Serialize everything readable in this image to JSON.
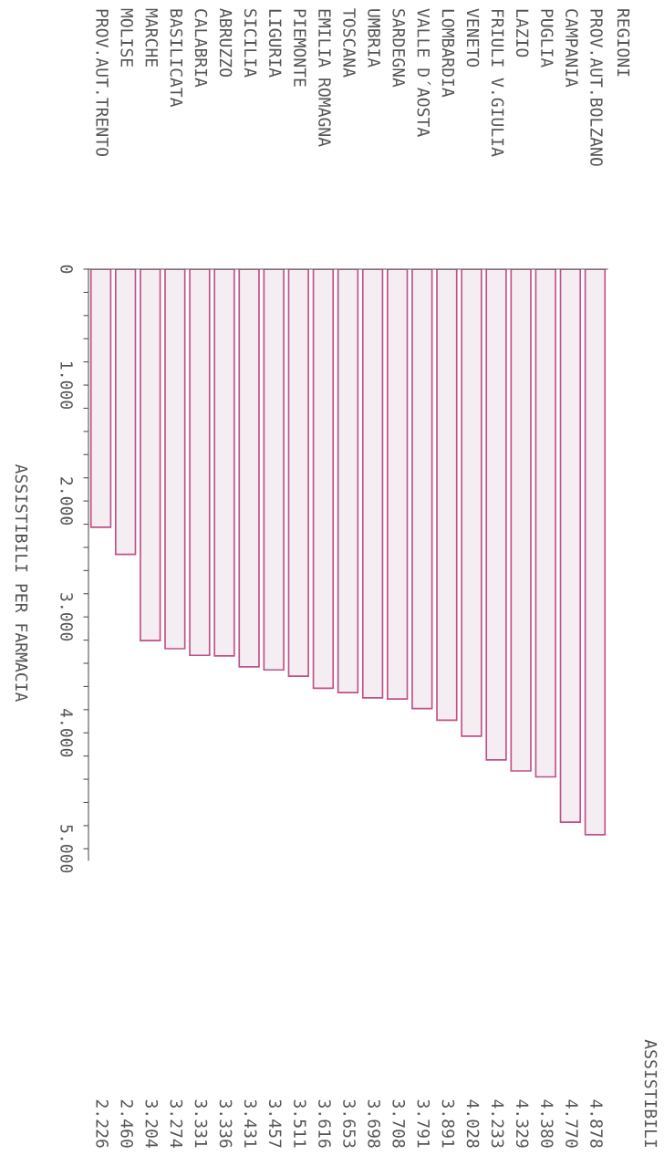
{
  "chart_data": {
    "type": "bar",
    "ylabel": "ASSISTIBILI PER FARMACIA",
    "annotations": [
      "REGIONI",
      "ASSISTIBILI"
    ],
    "categories": [
      "PROV.AUT.TRENTO",
      "MOLISE",
      "MARCHE",
      "BASILICATA",
      "CALABRIA",
      "ABRUZZO",
      "SICILIA",
      "LIGURIA",
      "PIEMONTE",
      "EMILIA ROMAGNA",
      "TOSCANA",
      "UMBRIA",
      "SARDEGNA",
      "VALLE D´AOSTA",
      "LOMBARDIA",
      "VENETO",
      "FRIULI V.GIULIA",
      "LAZIO",
      "PUGLIA",
      "CAMPANIA",
      "PROV.AUT.BOLZANO"
    ],
    "values": [
      2226,
      2460,
      3204,
      3274,
      3331,
      3336,
      3431,
      3457,
      3511,
      3616,
      3653,
      3698,
      3708,
      3791,
      3891,
      4028,
      4233,
      4329,
      4380,
      4770,
      4878
    ],
    "value_labels": [
      "2.226",
      "2.460",
      "3.204",
      "3.274",
      "3.331",
      "3.336",
      "3.431",
      "3.457",
      "3.511",
      "3.616",
      "3.653",
      "3.698",
      "3.708",
      "3.791",
      "3.891",
      "4.028",
      "4.233",
      "4.329",
      "4.380",
      "4.770",
      "4.878"
    ],
    "color": "#f4eef2",
    "ylim": [
      5100,
      0
    ],
    "yticks": [
      0,
      {
        "value": 200,
        "label": null
      },
      {
        "value": 400,
        "label": null
      },
      {
        "value": 600,
        "label": null
      },
      {
        "value": 800,
        "label": null
      },
      {
        "value": 1000,
        "label": "1.000"
      },
      {
        "value": 1200,
        "label": null
      },
      {
        "value": 1400,
        "label": null
      },
      {
        "value": 1600,
        "label": null
      },
      {
        "value": 1800,
        "label": null
      },
      {
        "value": 2000,
        "label": "2.000"
      },
      {
        "value": 2200,
        "label": null
      },
      {
        "value": 2400,
        "label": null
      },
      {
        "value": 2600,
        "label": null
      },
      {
        "value": 2800,
        "label": null
      },
      {
        "value": 3000,
        "label": "3.000"
      },
      {
        "value": 3200,
        "label": null
      },
      {
        "value": 3400,
        "label": null
      },
      {
        "value": 3600,
        "label": null
      },
      {
        "value": 3800,
        "label": null
      },
      {
        "value": 4000,
        "label": "4.000"
      },
      {
        "value": 4200,
        "label": null
      },
      {
        "value": 4400,
        "label": null
      },
      {
        "value": 4600,
        "label": null
      },
      {
        "value": 4800,
        "label": null
      },
      {
        "value": 5000,
        "label": "5.000"
      }
    ],
    "grid": false,
    "legend": false
  }
}
